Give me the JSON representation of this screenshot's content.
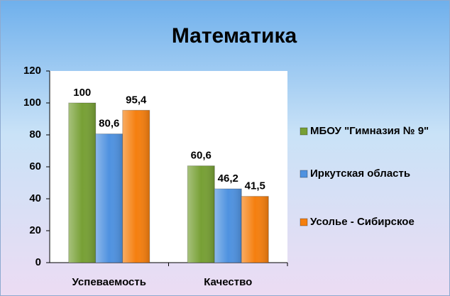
{
  "chart_data": {
    "type": "bar",
    "title": "Математика",
    "categories": [
      "Успеваемость",
      "Качество"
    ],
    "series": [
      {
        "name": "МБОУ \"Гимназия № 9\"",
        "color": "#77a035",
        "values": [
          100,
          60.6
        ],
        "value_labels": [
          "100",
          "60,6"
        ]
      },
      {
        "name": "Иркутская область",
        "color": "#4f92e0",
        "values": [
          80.6,
          46.2
        ],
        "value_labels": [
          "80,6",
          "46,2"
        ]
      },
      {
        "name": "Усолье - Сибирское",
        "color": "#f57f0f",
        "values": [
          95.4,
          41.5
        ],
        "value_labels": [
          "95,4",
          "41,5"
        ]
      }
    ],
    "ylim": [
      0,
      120
    ],
    "yticks": [
      0,
      20,
      40,
      60,
      80,
      100,
      120
    ],
    "grid": false,
    "legend": "right"
  }
}
